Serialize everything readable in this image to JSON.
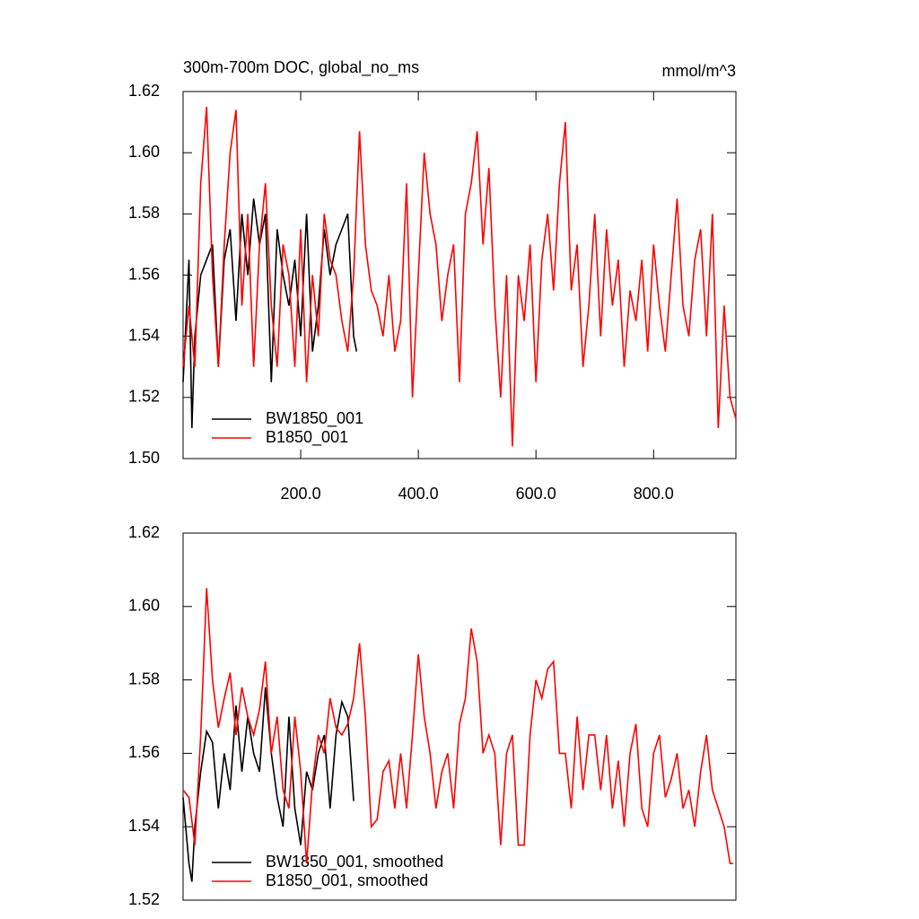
{
  "chart_data": [
    {
      "type": "line",
      "title": "300m-700m DOC, global_no_ms",
      "units": "mmol/m^3",
      "xlim": [
        0,
        940
      ],
      "xticks": [
        {
          "value": 200,
          "label": "200.0"
        },
        {
          "value": 400,
          "label": "400.0"
        },
        {
          "value": 600,
          "label": "600.0"
        },
        {
          "value": 800,
          "label": "800.0"
        }
      ],
      "ylim": [
        1.5,
        1.62
      ],
      "yticks": [
        {
          "value": 1.5,
          "label": "1.50"
        },
        {
          "value": 1.52,
          "label": "1.52"
        },
        {
          "value": 1.54,
          "label": "1.54"
        },
        {
          "value": 1.56,
          "label": "1.56"
        },
        {
          "value": 1.58,
          "label": "1.58"
        },
        {
          "value": 1.6,
          "label": "1.60"
        },
        {
          "value": 1.62,
          "label": "1.62"
        }
      ],
      "series": [
        {
          "name": "BW1850_001",
          "color": "#000000",
          "x": [
            0,
            10,
            15,
            20,
            30,
            40,
            50,
            60,
            70,
            80,
            90,
            100,
            110,
            120,
            130,
            140,
            150,
            160,
            170,
            180,
            190,
            200,
            210,
            220,
            230,
            240,
            250,
            260,
            270,
            280,
            290,
            295
          ],
          "values": [
            1.525,
            1.565,
            1.51,
            1.54,
            1.56,
            1.565,
            1.57,
            1.53,
            1.565,
            1.575,
            1.545,
            1.58,
            1.56,
            1.585,
            1.57,
            1.58,
            1.525,
            1.575,
            1.56,
            1.55,
            1.565,
            1.54,
            1.58,
            1.535,
            1.55,
            1.575,
            1.56,
            1.57,
            1.575,
            1.58,
            1.54,
            1.535
          ]
        },
        {
          "name": "B1850_001",
          "color": "#ff0000",
          "x": [
            0,
            10,
            20,
            30,
            40,
            50,
            60,
            70,
            80,
            90,
            100,
            110,
            120,
            130,
            140,
            150,
            160,
            170,
            180,
            190,
            200,
            210,
            220,
            230,
            240,
            250,
            260,
            270,
            280,
            290,
            300,
            310,
            320,
            330,
            340,
            350,
            360,
            370,
            380,
            390,
            400,
            410,
            420,
            430,
            440,
            450,
            460,
            470,
            480,
            490,
            500,
            510,
            520,
            530,
            540,
            550,
            560,
            570,
            580,
            590,
            600,
            610,
            620,
            630,
            640,
            650,
            660,
            670,
            680,
            690,
            700,
            710,
            720,
            730,
            740,
            750,
            760,
            770,
            780,
            790,
            800,
            810,
            820,
            830,
            840,
            850,
            860,
            870,
            880,
            890,
            900,
            910,
            920,
            930,
            940
          ],
          "values": [
            1.53,
            1.55,
            1.53,
            1.59,
            1.615,
            1.56,
            1.53,
            1.57,
            1.6,
            1.614,
            1.55,
            1.58,
            1.53,
            1.57,
            1.59,
            1.55,
            1.53,
            1.57,
            1.56,
            1.53,
            1.575,
            1.525,
            1.56,
            1.54,
            1.58,
            1.565,
            1.56,
            1.545,
            1.535,
            1.56,
            1.607,
            1.57,
            1.555,
            1.55,
            1.54,
            1.56,
            1.535,
            1.545,
            1.59,
            1.52,
            1.56,
            1.6,
            1.58,
            1.57,
            1.545,
            1.56,
            1.57,
            1.525,
            1.58,
            1.59,
            1.607,
            1.57,
            1.595,
            1.55,
            1.52,
            1.56,
            1.504,
            1.56,
            1.545,
            1.57,
            1.525,
            1.565,
            1.58,
            1.555,
            1.59,
            1.61,
            1.555,
            1.57,
            1.53,
            1.55,
            1.58,
            1.54,
            1.575,
            1.55,
            1.565,
            1.53,
            1.555,
            1.545,
            1.565,
            1.535,
            1.57,
            1.55,
            1.535,
            1.56,
            1.585,
            1.55,
            1.54,
            1.565,
            1.575,
            1.54,
            1.58,
            1.51,
            1.55,
            1.52,
            1.513
          ]
        }
      ]
    },
    {
      "type": "line",
      "xlim": [
        0,
        940
      ],
      "ylim": [
        1.52,
        1.62
      ],
      "yticks": [
        {
          "value": 1.52,
          "label": "1.52"
        },
        {
          "value": 1.54,
          "label": "1.54"
        },
        {
          "value": 1.56,
          "label": "1.56"
        },
        {
          "value": 1.58,
          "label": "1.58"
        },
        {
          "value": 1.6,
          "label": "1.60"
        },
        {
          "value": 1.62,
          "label": "1.62"
        }
      ],
      "series": [
        {
          "name": "BW1850_001, smoothed",
          "color": "#000000",
          "x": [
            0,
            10,
            15,
            20,
            30,
            40,
            50,
            60,
            70,
            80,
            90,
            100,
            110,
            120,
            130,
            140,
            150,
            160,
            170,
            180,
            190,
            200,
            210,
            220,
            230,
            240,
            250,
            260,
            270,
            280,
            290
          ],
          "values": [
            1.548,
            1.53,
            1.525,
            1.54,
            1.555,
            1.566,
            1.563,
            1.545,
            1.56,
            1.55,
            1.573,
            1.555,
            1.57,
            1.56,
            1.555,
            1.578,
            1.56,
            1.548,
            1.54,
            1.57,
            1.545,
            1.535,
            1.555,
            1.55,
            1.56,
            1.565,
            1.545,
            1.565,
            1.574,
            1.57,
            1.547
          ]
        },
        {
          "name": "B1850_001, smoothed",
          "color": "#ff0000",
          "x": [
            0,
            10,
            20,
            30,
            40,
            50,
            60,
            70,
            80,
            90,
            100,
            110,
            120,
            130,
            140,
            150,
            160,
            170,
            180,
            190,
            200,
            210,
            220,
            230,
            240,
            250,
            260,
            270,
            280,
            290,
            300,
            310,
            320,
            330,
            340,
            350,
            360,
            370,
            380,
            390,
            400,
            410,
            420,
            430,
            440,
            450,
            460,
            470,
            480,
            490,
            500,
            510,
            520,
            530,
            540,
            550,
            560,
            570,
            580,
            590,
            600,
            610,
            620,
            630,
            640,
            650,
            660,
            670,
            680,
            690,
            700,
            710,
            720,
            730,
            740,
            750,
            760,
            770,
            780,
            790,
            800,
            810,
            820,
            830,
            840,
            850,
            860,
            870,
            880,
            890,
            900,
            910,
            920,
            930,
            935
          ],
          "values": [
            1.55,
            1.548,
            1.535,
            1.565,
            1.605,
            1.58,
            1.567,
            1.575,
            1.582,
            1.565,
            1.578,
            1.57,
            1.565,
            1.572,
            1.585,
            1.56,
            1.57,
            1.55,
            1.545,
            1.57,
            1.555,
            1.53,
            1.552,
            1.565,
            1.56,
            1.575,
            1.567,
            1.565,
            1.568,
            1.575,
            1.59,
            1.57,
            1.54,
            1.542,
            1.555,
            1.558,
            1.545,
            1.56,
            1.545,
            1.565,
            1.587,
            1.57,
            1.56,
            1.545,
            1.555,
            1.56,
            1.545,
            1.568,
            1.575,
            1.594,
            1.585,
            1.56,
            1.565,
            1.56,
            1.535,
            1.56,
            1.565,
            1.535,
            1.535,
            1.565,
            1.58,
            1.575,
            1.583,
            1.585,
            1.56,
            1.56,
            1.545,
            1.57,
            1.55,
            1.565,
            1.565,
            1.55,
            1.565,
            1.545,
            1.558,
            1.54,
            1.56,
            1.568,
            1.545,
            1.54,
            1.56,
            1.565,
            1.548,
            1.553,
            1.56,
            1.545,
            1.55,
            1.54,
            1.555,
            1.565,
            1.55,
            1.545,
            1.54,
            1.53,
            1.53
          ]
        }
      ]
    }
  ]
}
